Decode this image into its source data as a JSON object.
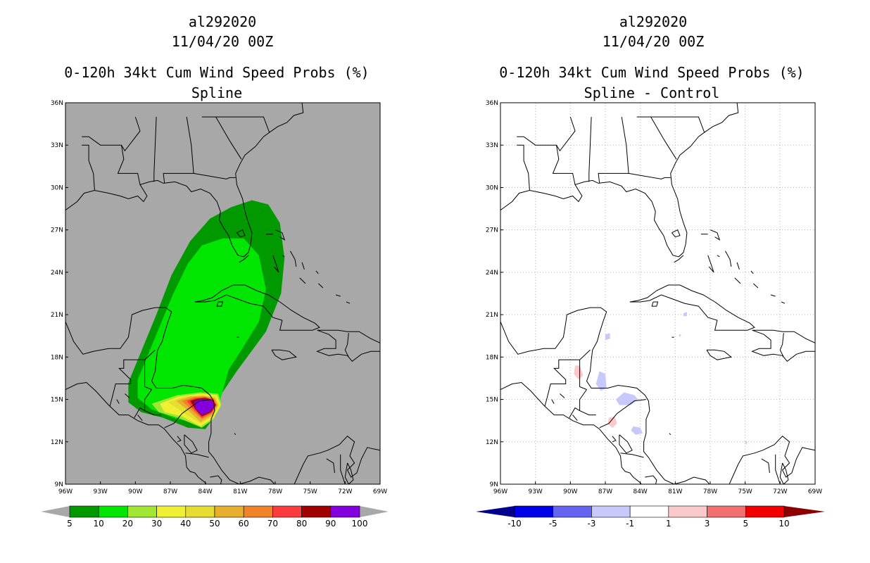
{
  "chart_data": [
    {
      "type": "heatmap",
      "storm_id": "al292020",
      "init_time": "11/04/20 00Z",
      "title": "0-120h 34kt Cum Wind Speed Probs (%)",
      "subtitle": "Spline",
      "background": "#a8a8a8",
      "lon_range": [
        -96,
        -69
      ],
      "lat_range": [
        9,
        36
      ],
      "lon_ticks": [
        "96W",
        "93W",
        "90W",
        "87W",
        "84W",
        "81W",
        "78W",
        "75W",
        "72W",
        "69W"
      ],
      "lat_ticks": [
        "36N",
        "33N",
        "30N",
        "27N",
        "24N",
        "21N",
        "18N",
        "15N",
        "12N",
        "9N"
      ],
      "colorbar": {
        "labels": [
          "5",
          "10",
          "20",
          "30",
          "40",
          "50",
          "60",
          "70",
          "80",
          "90",
          "100"
        ],
        "colors": [
          "#009a00",
          "#00e600",
          "#a0e632",
          "#f0f032",
          "#e6dc32",
          "#e6af2d",
          "#f08228",
          "#fa3c3c",
          "#a00000",
          "#8200dc"
        ],
        "under_color": "#a8a8a8",
        "over_color": "#a8a8a8"
      },
      "contours": [
        {
          "level": "5-10",
          "color": "#009a00",
          "points": [
            [
              -90.6,
              14.8
            ],
            [
              -90.6,
              16.2
            ],
            [
              -89.4,
              18.6
            ],
            [
              -88.2,
              21.0
            ],
            [
              -86.9,
              23.8
            ],
            [
              -85.3,
              26.2
            ],
            [
              -83.6,
              27.8
            ],
            [
              -81.8,
              28.6
            ],
            [
              -80.0,
              29.1
            ],
            [
              -78.6,
              28.8
            ],
            [
              -77.6,
              27.5
            ],
            [
              -77.2,
              25.0
            ],
            [
              -77.5,
              22.5
            ],
            [
              -78.8,
              19.8
            ],
            [
              -81.3,
              17.0
            ],
            [
              -82.6,
              15.4
            ],
            [
              -83.0,
              14.0
            ],
            [
              -84.0,
              12.9
            ],
            [
              -85.5,
              13.0
            ],
            [
              -87.6,
              13.7
            ],
            [
              -89.5,
              14.1
            ]
          ]
        },
        {
          "level": "10-20",
          "color": "#00e600",
          "points": [
            [
              -89.8,
              15.1
            ],
            [
              -89.8,
              16.4
            ],
            [
              -88.4,
              19.2
            ],
            [
              -86.8,
              22.4
            ],
            [
              -85.5,
              24.6
            ],
            [
              -84.3,
              25.9
            ],
            [
              -82.5,
              26.4
            ],
            [
              -80.7,
              26.4
            ],
            [
              -79.4,
              25.2
            ],
            [
              -78.8,
              22.8
            ],
            [
              -79.4,
              20.5
            ],
            [
              -80.9,
              18.5
            ],
            [
              -82.0,
              17.1
            ],
            [
              -82.5,
              15.6
            ],
            [
              -83.0,
              14.2
            ],
            [
              -84.2,
              13.3
            ],
            [
              -86.4,
              13.6
            ],
            [
              -88.6,
              14.3
            ]
          ]
        },
        {
          "level": "20-30",
          "color": "#a0e632",
          "points": [
            [
              -88.6,
              14.7
            ],
            [
              -86.4,
              15.3
            ],
            [
              -84.4,
              15.5
            ],
            [
              -82.9,
              15.4
            ],
            [
              -82.6,
              14.6
            ],
            [
              -83.3,
              13.6
            ],
            [
              -84.3,
              13.0
            ],
            [
              -86.3,
              13.7
            ],
            [
              -88.0,
              14.1
            ]
          ]
        },
        {
          "level": "30-40",
          "color": "#f0f032",
          "points": [
            [
              -87.9,
              14.7
            ],
            [
              -86.3,
              15.2
            ],
            [
              -84.4,
              15.4
            ],
            [
              -83.0,
              15.3
            ],
            [
              -82.7,
              14.6
            ],
            [
              -83.3,
              13.7
            ],
            [
              -84.4,
              13.1
            ],
            [
              -86.0,
              13.8
            ],
            [
              -87.5,
              14.1
            ]
          ]
        },
        {
          "level": "40-50",
          "color": "#e6dc32",
          "points": [
            [
              -87.2,
              14.8
            ],
            [
              -85.8,
              15.2
            ],
            [
              -84.3,
              15.3
            ],
            [
              -83.1,
              15.2
            ],
            [
              -82.8,
              14.6
            ],
            [
              -83.3,
              13.8
            ],
            [
              -84.4,
              13.3
            ],
            [
              -85.6,
              13.9
            ]
          ]
        },
        {
          "level": "50-60",
          "color": "#e6af2d",
          "points": [
            [
              -86.5,
              14.9
            ],
            [
              -85.3,
              15.2
            ],
            [
              -84.2,
              15.25
            ],
            [
              -83.2,
              15.1
            ],
            [
              -82.9,
              14.6
            ],
            [
              -83.35,
              13.9
            ],
            [
              -84.4,
              13.4
            ],
            [
              -85.3,
              14.1
            ]
          ]
        },
        {
          "level": "60-70",
          "color": "#f08228",
          "points": [
            [
              -86.0,
              14.9
            ],
            [
              -85.0,
              15.15
            ],
            [
              -84.1,
              15.2
            ],
            [
              -83.25,
              15.05
            ],
            [
              -83.0,
              14.6
            ],
            [
              -83.4,
              14.0
            ],
            [
              -84.3,
              13.6
            ],
            [
              -85.1,
              14.2
            ]
          ]
        },
        {
          "level": "70-80",
          "color": "#fa3c3c",
          "points": [
            [
              -85.6,
              14.9
            ],
            [
              -84.9,
              15.1
            ],
            [
              -84.0,
              15.15
            ],
            [
              -83.3,
              15.0
            ],
            [
              -83.05,
              14.6
            ],
            [
              -83.45,
              14.05
            ],
            [
              -84.3,
              13.7
            ],
            [
              -84.95,
              14.25
            ]
          ]
        },
        {
          "level": "80-90",
          "color": "#a00000",
          "points": [
            [
              -85.3,
              14.9
            ],
            [
              -84.7,
              15.05
            ],
            [
              -84.0,
              15.1
            ],
            [
              -83.35,
              14.95
            ],
            [
              -83.1,
              14.6
            ],
            [
              -83.5,
              14.1
            ],
            [
              -84.3,
              13.8
            ],
            [
              -84.85,
              14.3
            ]
          ]
        },
        {
          "level": "90-100",
          "color": "#8200dc",
          "points": [
            [
              -84.95,
              14.85
            ],
            [
              -84.5,
              15.0
            ],
            [
              -83.9,
              15.05
            ],
            [
              -83.4,
              14.9
            ],
            [
              -83.2,
              14.55
            ],
            [
              -83.6,
              14.15
            ],
            [
              -84.3,
              13.9
            ],
            [
              -84.8,
              14.35
            ]
          ]
        }
      ]
    },
    {
      "type": "heatmap",
      "storm_id": "al292020",
      "init_time": "11/04/20 00Z",
      "title": "0-120h 34kt Cum Wind Speed Probs (%)",
      "subtitle": "Spline - Control",
      "background": "#ffffff",
      "lon_range": [
        -96,
        -69
      ],
      "lat_range": [
        9,
        36
      ],
      "lon_ticks": [
        "96W",
        "93W",
        "90W",
        "87W",
        "84W",
        "81W",
        "78W",
        "75W",
        "72W",
        "69W"
      ],
      "lat_ticks": [
        "36N",
        "33N",
        "30N",
        "27N",
        "24N",
        "21N",
        "18N",
        "15N",
        "12N",
        "9N"
      ],
      "grid": true,
      "colorbar": {
        "labels": [
          "-10",
          "-5",
          "-3",
          "-1",
          "1",
          "3",
          "5",
          "10"
        ],
        "colors": [
          "#0000e6",
          "#6464f0",
          "#c8c8fa",
          "#ffffff",
          "#facaca",
          "#f07070",
          "#f00000"
        ],
        "under_color": "#00008c",
        "over_color": "#8c0000"
      },
      "contours": [
        {
          "level": "-3 to -1",
          "color": "#c8c8fa",
          "points": [
            [
              -86.1,
              15.0
            ],
            [
              -85.4,
              15.5
            ],
            [
              -84.5,
              15.3
            ],
            [
              -84.2,
              15.0
            ],
            [
              -84.8,
              14.6
            ],
            [
              -85.8,
              14.6
            ]
          ]
        },
        {
          "level": "-3 to -1",
          "color": "#c8c8fa",
          "points": [
            [
              -87.5,
              17.0
            ],
            [
              -87.0,
              16.8
            ],
            [
              -86.9,
              15.8
            ],
            [
              -87.4,
              15.6
            ],
            [
              -87.8,
              16.1
            ]
          ]
        },
        {
          "level": "-3 to -1",
          "color": "#c8c8fa",
          "points": [
            [
              -84.6,
              13.1
            ],
            [
              -84.0,
              13.0
            ],
            [
              -83.8,
              12.6
            ],
            [
              -84.4,
              12.5
            ],
            [
              -84.8,
              12.8
            ]
          ]
        },
        {
          "level": "-3 to -1",
          "color": "#c8c8fa",
          "points": [
            [
              -87.0,
              19.6
            ],
            [
              -86.6,
              19.7
            ],
            [
              -86.6,
              19.3
            ],
            [
              -87.0,
              19.2
            ]
          ]
        },
        {
          "level": "-3 to -1",
          "color": "#c8c8fa",
          "points": [
            [
              -80.3,
              21.1
            ],
            [
              -80.0,
              21.2
            ],
            [
              -80.0,
              20.9
            ],
            [
              -80.3,
              20.9
            ]
          ]
        },
        {
          "level": "-3 to -1",
          "color": "#c8c8fa",
          "points": [
            [
              -84.9,
              15.0
            ],
            [
              -84.7,
              15.1
            ],
            [
              -84.5,
              14.9
            ],
            [
              -84.8,
              14.8
            ]
          ]
        },
        {
          "level": "-3 to -1",
          "color": "#c8c8fa",
          "points": [
            [
              -80.7,
              19.6
            ],
            [
              -80.5,
              19.6
            ],
            [
              -80.6,
              19.4
            ]
          ]
        },
        {
          "level": "-3 to -1",
          "color": "#c8c8fa",
          "points": [
            [
              -75.1,
              12.1
            ],
            [
              -74.8,
              12.0
            ],
            [
              -74.9,
              11.8
            ]
          ]
        },
        {
          "level": "1 to 3",
          "color": "#facaca",
          "points": [
            [
              -89.6,
              17.4
            ],
            [
              -89.2,
              17.4
            ],
            [
              -88.9,
              16.7
            ],
            [
              -89.3,
              16.4
            ],
            [
              -89.7,
              16.8
            ]
          ]
        },
        {
          "level": "1 to 3",
          "color": "#facaca",
          "points": [
            [
              -86.7,
              13.7
            ],
            [
              -86.2,
              13.8
            ],
            [
              -86.0,
              13.3
            ],
            [
              -86.4,
              13.0
            ],
            [
              -86.8,
              13.3
            ]
          ]
        }
      ]
    }
  ]
}
